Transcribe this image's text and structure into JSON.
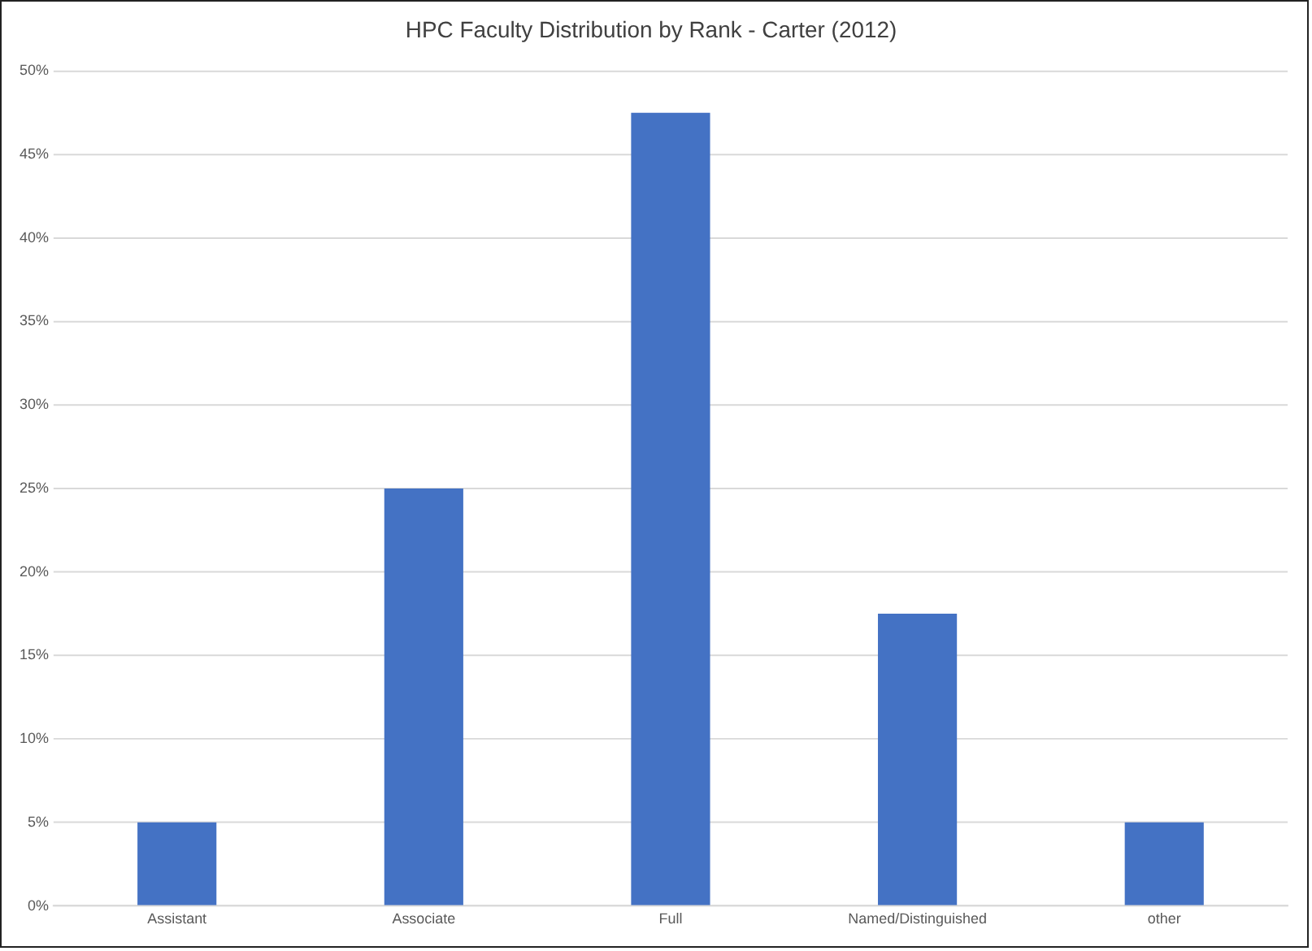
{
  "chart_data": {
    "type": "bar",
    "title": "HPC Faculty Distribution by Rank - Carter (2012)",
    "categories": [
      "Assistant",
      "Associate",
      "Full",
      "Named/Distinguished",
      "other"
    ],
    "values": [
      5,
      25,
      47.5,
      17.5,
      5
    ],
    "color": "#4472c4",
    "ylim": [
      0,
      50
    ],
    "yticks": [
      {
        "value": 0,
        "label": "0%"
      },
      {
        "value": 5,
        "label": "5%"
      },
      {
        "value": 10,
        "label": "10%"
      },
      {
        "value": 15,
        "label": "15%"
      },
      {
        "value": 20,
        "label": "20%"
      },
      {
        "value": 25,
        "label": "25%"
      },
      {
        "value": 30,
        "label": "30%"
      },
      {
        "value": 35,
        "label": "35%"
      },
      {
        "value": 40,
        "label": "40%"
      },
      {
        "value": 45,
        "label": "45%"
      },
      {
        "value": 50,
        "label": "50%"
      }
    ],
    "grid": "y"
  }
}
